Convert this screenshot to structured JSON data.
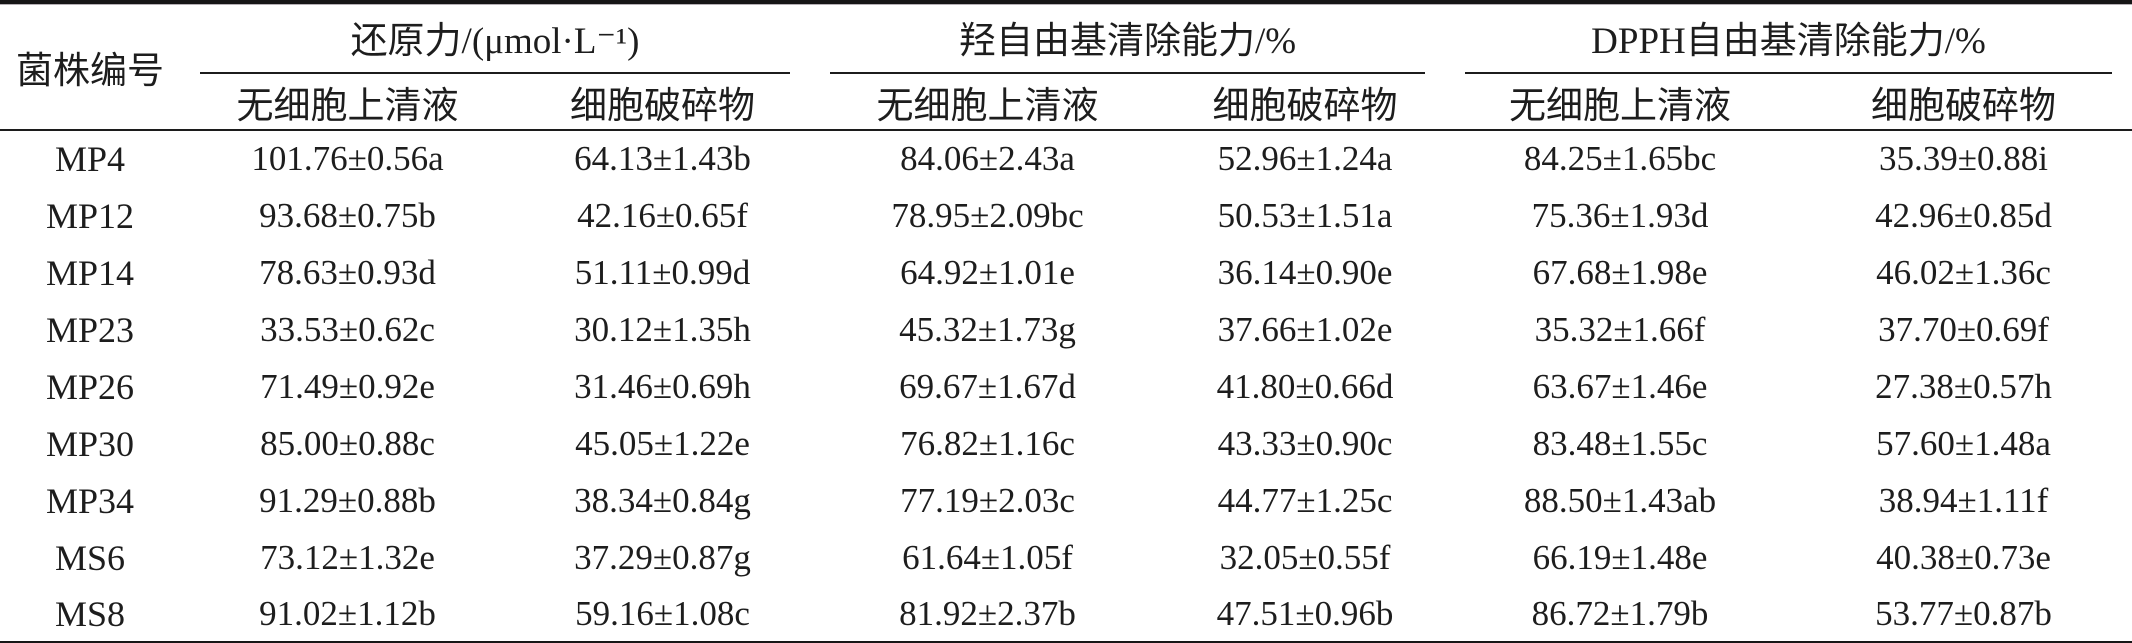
{
  "table": {
    "columns": {
      "strain": "菌株编号",
      "groups": [
        {
          "label": "还原力/(μmol·L⁻¹)",
          "sub": [
            "无细胞上清液",
            "细胞破碎物"
          ]
        },
        {
          "label": "羟自由基清除能力/%",
          "sub": [
            "无细胞上清液",
            "细胞破碎物"
          ]
        },
        {
          "label": "DPPH自由基清除能力/%",
          "sub": [
            "无细胞上清液",
            "细胞破碎物"
          ]
        }
      ]
    },
    "rows": [
      {
        "strain": "MP4",
        "values": [
          "101.76±0.56a",
          "64.13±1.43b",
          "84.06±2.43a",
          "52.96±1.24a",
          "84.25±1.65bc",
          "35.39±0.88i"
        ]
      },
      {
        "strain": "MP12",
        "values": [
          "93.68±0.75b",
          "42.16±0.65f",
          "78.95±2.09bc",
          "50.53±1.51a",
          "75.36±1.93d",
          "42.96±0.85d"
        ]
      },
      {
        "strain": "MP14",
        "values": [
          "78.63±0.93d",
          "51.11±0.99d",
          "64.92±1.01e",
          "36.14±0.90e",
          "67.68±1.98e",
          "46.02±1.36c"
        ]
      },
      {
        "strain": "MP23",
        "values": [
          "33.53±0.62c",
          "30.12±1.35h",
          "45.32±1.73g",
          "37.66±1.02e",
          "35.32±1.66f",
          "37.70±0.69f"
        ]
      },
      {
        "strain": "MP26",
        "values": [
          "71.49±0.92e",
          "31.46±0.69h",
          "69.67±1.67d",
          "41.80±0.66d",
          "63.67±1.46e",
          "27.38±0.57h"
        ]
      },
      {
        "strain": "MP30",
        "values": [
          "85.00±0.88c",
          "45.05±1.22e",
          "76.82±1.16c",
          "43.33±0.90c",
          "83.48±1.55c",
          "57.60±1.48a"
        ]
      },
      {
        "strain": "MP34",
        "values": [
          "91.29±0.88b",
          "38.34±0.84g",
          "77.19±2.03c",
          "44.77±1.25c",
          "88.50±1.43ab",
          "38.94±1.11f"
        ]
      },
      {
        "strain": "MS6",
        "values": [
          "73.12±1.32e",
          "37.29±0.87g",
          "61.64±1.05f",
          "32.05±0.55f",
          "66.19±1.48e",
          "40.38±0.73e"
        ]
      },
      {
        "strain": "MS8",
        "values": [
          "91.02±1.12b",
          "59.16±1.08c",
          "81.92±2.37b",
          "47.51±0.96b",
          "86.72±1.79b",
          "53.77±0.87b"
        ]
      }
    ]
  },
  "colors": {
    "text": "#1d1d1d",
    "rule": "#161616",
    "background": "#ffffff"
  }
}
